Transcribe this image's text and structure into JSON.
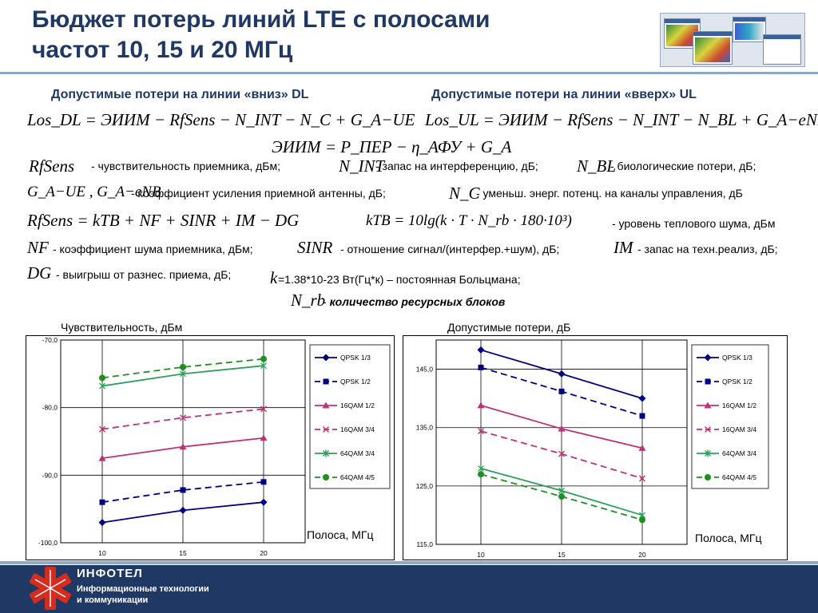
{
  "title_line1": "Бюджет потерь линий LTE с полосами",
  "title_line2": "частот 10, 15 и 20 МГц",
  "section_dl": "Допустимые потери на линии «вниз» DL",
  "section_ul": "Допустимые потери на линии «вверх» UL",
  "formulas": {
    "los_dl": "Los_DL = ЭИИМ − RfSens − N_INT − N_C + G_A−UE",
    "los_ul": "Los_UL = ЭИИМ − RfSens − N_INT − N_BL + G_A−eNB",
    "eirp": "ЭИИМ = P_ПЕР − η_АФУ + G_A",
    "rfsens": "RfSens = kTB + NF + SINR + IM − DG",
    "ktb": "kTB = 10lg(k · T · N_rb · 180·10³)"
  },
  "definitions": {
    "rfsens_sym": "RfSens",
    "rfsens_text": "- чувствительность приемника, дБм;",
    "nint_sym": "N_INT",
    "nint_text": "- запас на интерференцию, дБ;",
    "nbl_sym": "N_BL",
    "nbl_text": "- биологические потери, дБ;",
    "ga_sym": "G_A−UE , G_A−eNB",
    "ga_text": "- коэффициент усиления приемной антенны, дБ;",
    "nc_sym": "N_C",
    "nc_text": "- уменьш. энерг. потенц. на каналы управления, дБ",
    "ktb_text": "- уровень теплового шума, дБм",
    "nf_sym": "NF",
    "nf_text": "- коэффициент шума приемника, дБм;",
    "sinr_sym": "SINR",
    "sinr_text": "- отношение сигнал/(интерфер.+шум), дБ;",
    "im_sym": "IM",
    "im_text": "- запас на техн.реализ, дБ;",
    "dg_sym": "DG",
    "dg_text": "- выигрыш от разнес. приема, дБ;",
    "k_sym": "k",
    "k_text": "=1.38*10-23 Вт(Гц*к) – постоянная Больцмана;",
    "nrb_sym": "N_rb",
    "nrb_text": "количество ресурсных блоков"
  },
  "footer": {
    "brand": "ИНФОТЕЛ",
    "slogan_line1": "Информационные технологии",
    "slogan_line2": "и коммуникации"
  },
  "colors": {
    "navy": "#000080",
    "magenta": "#c0307a",
    "green": "#2ca05a",
    "dark_green": "#1f8f1f",
    "title": "#1f3864"
  },
  "chart_data": [
    {
      "type": "line",
      "title": "Чувствительность, дБм",
      "xlabel": "Полоса, МГц",
      "x": [
        10,
        15,
        20
      ],
      "ylim": [
        -100,
        -70
      ],
      "yticks": [
        "-70,0",
        "-80,0",
        "-90,0",
        "-100,0"
      ],
      "xticks": [
        "10",
        "15",
        "20"
      ],
      "grid": true,
      "legend": "right",
      "series": [
        {
          "name": "QPSK 1/3",
          "values": [
            -97.0,
            -95.2,
            -94.0
          ],
          "color": "#000080",
          "dash": false,
          "marker": "diamond"
        },
        {
          "name": "QPSK 1/2",
          "values": [
            -94.0,
            -92.2,
            -91.0
          ],
          "color": "#000080",
          "dash": true,
          "marker": "square"
        },
        {
          "name": "16QAM 1/2",
          "values": [
            -87.5,
            -85.8,
            -84.5
          ],
          "color": "#c0307a",
          "dash": false,
          "marker": "triangle"
        },
        {
          "name": "16QAM 3/4",
          "values": [
            -83.2,
            -81.5,
            -80.2
          ],
          "color": "#c0307a",
          "dash": true,
          "marker": "cross"
        },
        {
          "name": "64QAM 3/4",
          "values": [
            -76.8,
            -75.0,
            -73.8
          ],
          "color": "#2ca05a",
          "dash": false,
          "marker": "star"
        },
        {
          "name": "64QAM 4/5",
          "values": [
            -75.6,
            -74.0,
            -72.8
          ],
          "color": "#1f8f1f",
          "dash": true,
          "marker": "circle"
        }
      ]
    },
    {
      "type": "line",
      "title": "Допустимые потери, дБ",
      "xlabel": "Полоса, МГц",
      "x": [
        10,
        15,
        20
      ],
      "ylim": [
        115,
        150
      ],
      "yticks": [
        "145,0",
        "135,0",
        "125,0",
        "115,0"
      ],
      "xticks": [
        "10",
        "15",
        "20"
      ],
      "grid": true,
      "legend": "right",
      "series": [
        {
          "name": "QPSK 1/3",
          "values": [
            148.3,
            144.2,
            140.0
          ],
          "color": "#000080",
          "dash": false,
          "marker": "diamond"
        },
        {
          "name": "QPSK 1/2",
          "values": [
            145.3,
            141.2,
            137.0
          ],
          "color": "#000080",
          "dash": true,
          "marker": "square"
        },
        {
          "name": "16QAM 1/2",
          "values": [
            138.8,
            134.8,
            131.5
          ],
          "color": "#c0307a",
          "dash": false,
          "marker": "triangle"
        },
        {
          "name": "16QAM 3/4",
          "values": [
            134.4,
            130.5,
            126.3
          ],
          "color": "#c0307a",
          "dash": true,
          "marker": "cross"
        },
        {
          "name": "64QAM 3/4",
          "values": [
            128.0,
            124.2,
            120.0
          ],
          "color": "#2ca05a",
          "dash": false,
          "marker": "star"
        },
        {
          "name": "64QAM 4/5",
          "values": [
            127.0,
            123.2,
            119.2
          ],
          "color": "#1f8f1f",
          "dash": true,
          "marker": "circle"
        }
      ]
    }
  ]
}
